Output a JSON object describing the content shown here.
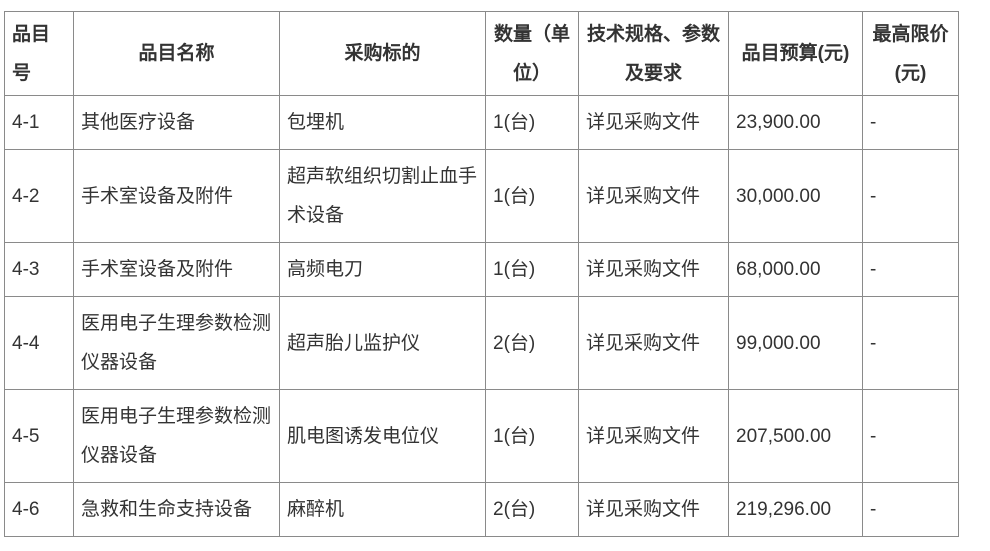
{
  "headers": [
    "品目号",
    "品目名称",
    "采购标的",
    "数量（单位）",
    "技术规格、参数及要求",
    "品目预算(元)",
    "最高限价(元)"
  ],
  "rows": [
    {
      "id": "4-1",
      "name": "其他医疗设备",
      "target": "包埋机",
      "qty": "1(台)",
      "spec": "详见采购文件",
      "budget": "23,900.00",
      "limit": "-"
    },
    {
      "id": "4-2",
      "name": "手术室设备及附件",
      "target": "超声软组织切割止血手术设备",
      "qty": "1(台)",
      "spec": "详见采购文件",
      "budget": "30,000.00",
      "limit": "-"
    },
    {
      "id": "4-3",
      "name": "手术室设备及附件",
      "target": "高频电刀",
      "qty": "1(台)",
      "spec": "详见采购文件",
      "budget": "68,000.00",
      "limit": "-"
    },
    {
      "id": "4-4",
      "name": "医用电子生理参数检测仪器设备",
      "target": "超声胎儿监护仪",
      "qty": "2(台)",
      "spec": "详见采购文件",
      "budget": "99,000.00",
      "limit": "-"
    },
    {
      "id": "4-5",
      "name": "医用电子生理参数检测仪器设备",
      "target": "肌电图诱发电位仪",
      "qty": "1(台)",
      "spec": "详见采购文件",
      "budget": "207,500.00",
      "limit": "-"
    },
    {
      "id": "4-6",
      "name": "急救和生命支持设备",
      "target": "麻醉机",
      "qty": "2(台)",
      "spec": "详见采购文件",
      "budget": "219,296.00",
      "limit": "-"
    }
  ]
}
